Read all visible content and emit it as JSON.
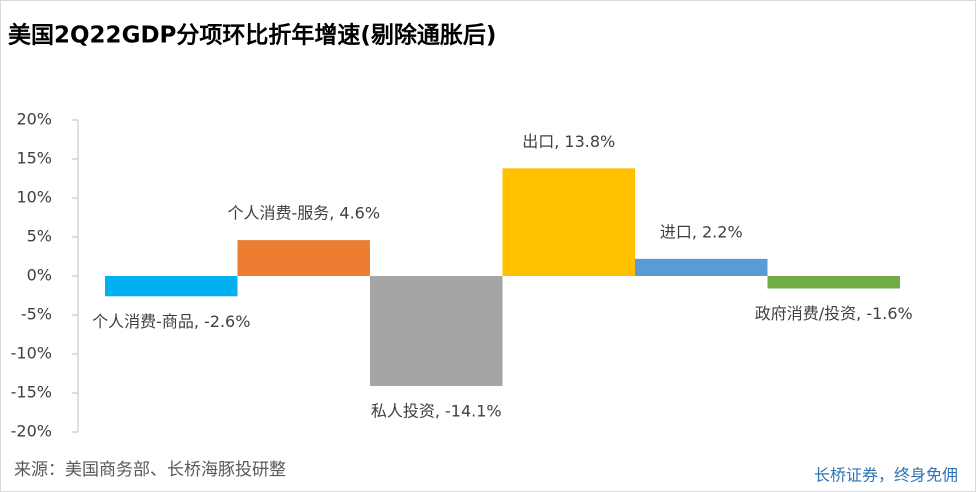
{
  "chart_data": {
    "type": "bar",
    "title": "美国2Q22GDP分项环比折年增速(剔除通胀后)",
    "values": [
      -2.6,
      4.6,
      -14.1,
      13.8,
      2.2,
      -1.6
    ],
    "value_labels": [
      "个人消费-商品, -2.6%",
      "个人消费-服务, 4.6%",
      "私人投资, -14.1%",
      "出口, 13.8%",
      "进口, 2.2%",
      "政府消费/投资, -1.6%"
    ],
    "colors": [
      "#00b0f0",
      "#ed7d31",
      "#a5a5a5",
      "#ffc000",
      "#5b9bd5",
      "#70ad47"
    ],
    "ylim": [
      -20,
      20
    ],
    "yticks": [
      {
        "value": -20,
        "label": "-20%"
      },
      {
        "value": -15,
        "label": "-15%"
      },
      {
        "value": -10,
        "label": "-10%"
      },
      {
        "value": -5,
        "label": "-5%"
      },
      {
        "value": 0,
        "label": "0%"
      },
      {
        "value": 5,
        "label": "5%"
      },
      {
        "value": 10,
        "label": "10%"
      },
      {
        "value": 15,
        "label": "15%"
      },
      {
        "value": 20,
        "label": "20%"
      }
    ],
    "source": "来源：美国商务部、长桥海豚投研整",
    "footer": "长桥证券，终身免佣"
  }
}
